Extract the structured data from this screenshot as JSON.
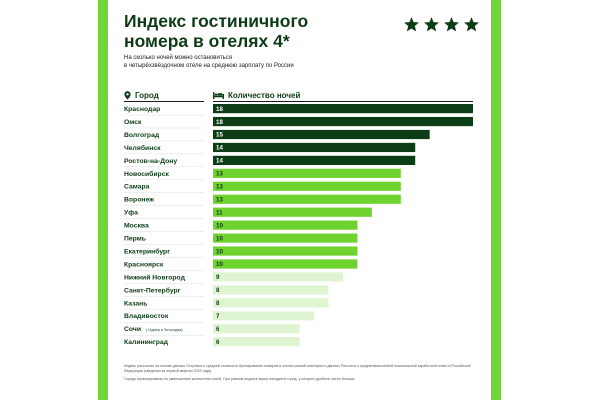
{
  "title": [
    "Индекс гостиничного",
    "номера в отелях 4*"
  ],
  "subtitle": [
    "На сколько ночей можно остановиться",
    "в четырёхзвёздочном отеле на среднюю зарплату по России"
  ],
  "stars_shown": 4,
  "columns": {
    "city": "Город",
    "nights": "Количество ночей"
  },
  "colors": {
    "frame": "#70d63a",
    "title": "#0c3b16",
    "tier_dark": "#0d3d16",
    "tier_mid": "#6fd22f",
    "tier_light": "#dff5d2"
  },
  "chart_data": {
    "type": "bar",
    "orientation": "horizontal",
    "xlim": [
      0,
      18
    ],
    "categories": [
      "Краснодар",
      "Омск",
      "Волгоград",
      "Челябинск",
      "Ростов-на-Дону",
      "Новосибирск",
      "Самара",
      "Воронеж",
      "Уфа",
      "Москва",
      "Пермь",
      "Екатеринбург",
      "Красноярск",
      "Нижний Новгород",
      "Санкт-Петербург",
      "Казань",
      "Владивосток",
      "Сочи",
      "Калининград"
    ],
    "category_notes": [
      "",
      "",
      "",
      "",
      "",
      "",
      "",
      "",
      "",
      "",
      "",
      "",
      "",
      "",
      "",
      "",
      "",
      "(+Адлер и Эстосадок)",
      ""
    ],
    "values": [
      18,
      18,
      15,
      14,
      14,
      13,
      13,
      13,
      11,
      10,
      10,
      10,
      10,
      9,
      8,
      8,
      7,
      6,
      6
    ],
    "tiers": [
      "dark",
      "dark",
      "dark",
      "dark",
      "dark",
      "mid",
      "mid",
      "mid",
      "mid",
      "mid",
      "mid",
      "mid",
      "mid",
      "light",
      "light",
      "light",
      "light",
      "light",
      "light"
    ]
  },
  "footnotes": [
    "Индекс рассчитан на основе данных Островка о средней стоимости бронирования номеров в отелях разной категории и данных Росстата о средненачисленной номинальной заработной плате в Российской Федерации (сведения за первый квартал 2023 года).",
    "Города отранжированы по уменьшению количества ночей. При равном индексе выше находится город, у которых дробное число больше."
  ]
}
